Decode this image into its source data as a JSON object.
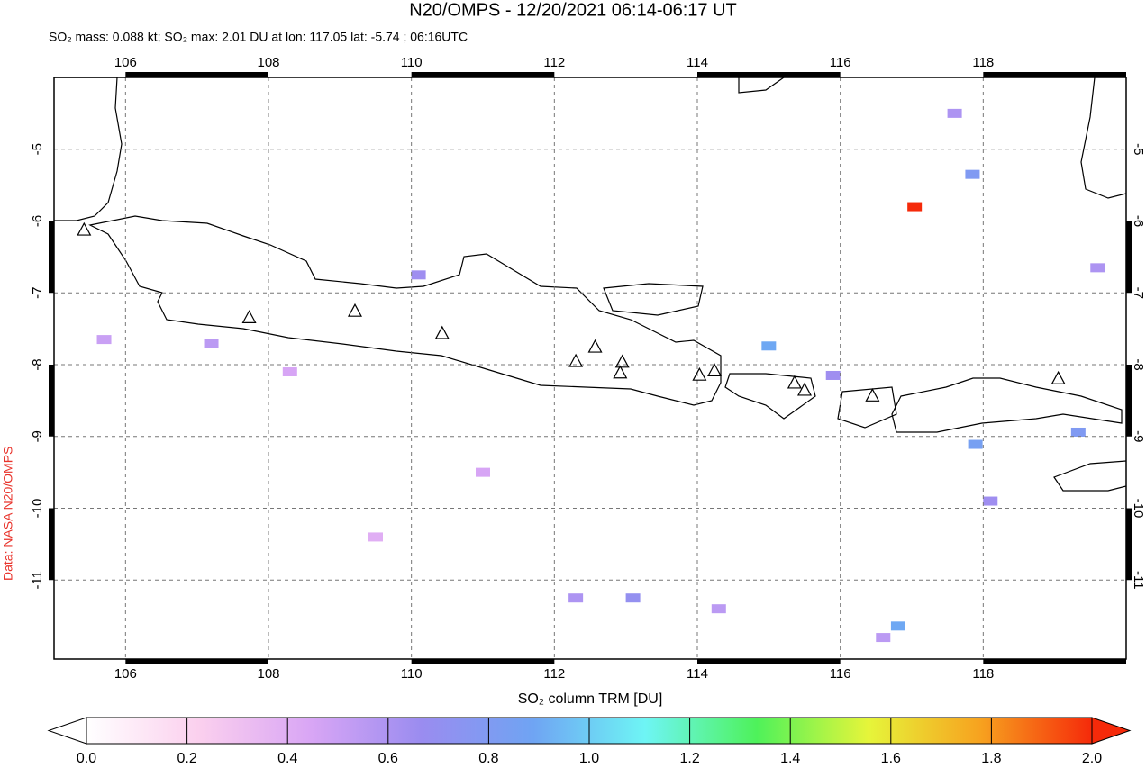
{
  "chart_data": {
    "type": "map",
    "title": "N20/OMPS - 12/20/2021 06:14-06:17 UT",
    "subtitle": "SO₂ mass: 0.088 kt; SO₂ max: 2.01 DU at lon: 117.05 lat: -5.74 ; 06:16UTC",
    "source": "Data: NASA N20/OMPS",
    "colorbar_label": "SO₂ column TRM [DU]",
    "xlim": [
      105,
      120
    ],
    "ylim": [
      -12.1,
      -4
    ],
    "xticks": [
      106,
      108,
      110,
      112,
      114,
      116,
      118
    ],
    "yticks": [
      -5,
      -6,
      -7,
      -8,
      -9,
      -10,
      -11
    ],
    "grid": true,
    "clim": [
      0,
      2
    ],
    "cticks": [
      {
        "value": 0,
        "label": "0.0"
      },
      0.2,
      0.4,
      0.6,
      0.8,
      {
        "value": 1,
        "label": "1.0"
      },
      1.2,
      1.4,
      1.6,
      1.8,
      {
        "value": 2,
        "label": "2.0"
      }
    ],
    "colors": [
      "#ffffff",
      "#fbd0ee",
      "#d9a6f5",
      "#9a8cf0",
      "#6fa4f3",
      "#6ef5f5",
      "#4ef25a",
      "#e6f53a",
      "#f7a21f",
      "#f52a0a"
    ],
    "pixels": {
      "lon": [
        117.04,
        117.85,
        119.33,
        117.89,
        115.0,
        116.81,
        118.1,
        117.6,
        110.1,
        115.9,
        114.3,
        112.3,
        119.6,
        113.1,
        107.2,
        108.3,
        109.5,
        111.0,
        116.6,
        105.7
      ],
      "lat": [
        -5.8,
        -5.35,
        -8.94,
        -9.11,
        -7.74,
        -11.64,
        -9.9,
        -4.5,
        -6.75,
        -8.15,
        -11.4,
        -11.25,
        -6.65,
        -11.25,
        -7.7,
        -8.1,
        -10.4,
        -9.5,
        -11.8,
        -7.65
      ],
      "values": [
        2.01,
        0.8,
        0.8,
        0.85,
        0.9,
        0.9,
        0.65,
        0.6,
        0.65,
        0.65,
        0.55,
        0.6,
        0.6,
        0.7,
        0.55,
        0.45,
        0.4,
        0.45,
        0.55,
        0.5
      ]
    },
    "volcanoes": {
      "lon": [
        105.42,
        107.73,
        109.21,
        110.43,
        112.3,
        112.57,
        112.95,
        112.92,
        114.03,
        114.24,
        115.36,
        115.5,
        116.45,
        119.05
      ],
      "lat": [
        -6.12,
        -7.34,
        -7.25,
        -7.56,
        -7.95,
        -7.75,
        -7.96,
        -8.11,
        -8.14,
        -8.08,
        -8.25,
        -8.35,
        -8.43,
        -8.19
      ]
    }
  }
}
